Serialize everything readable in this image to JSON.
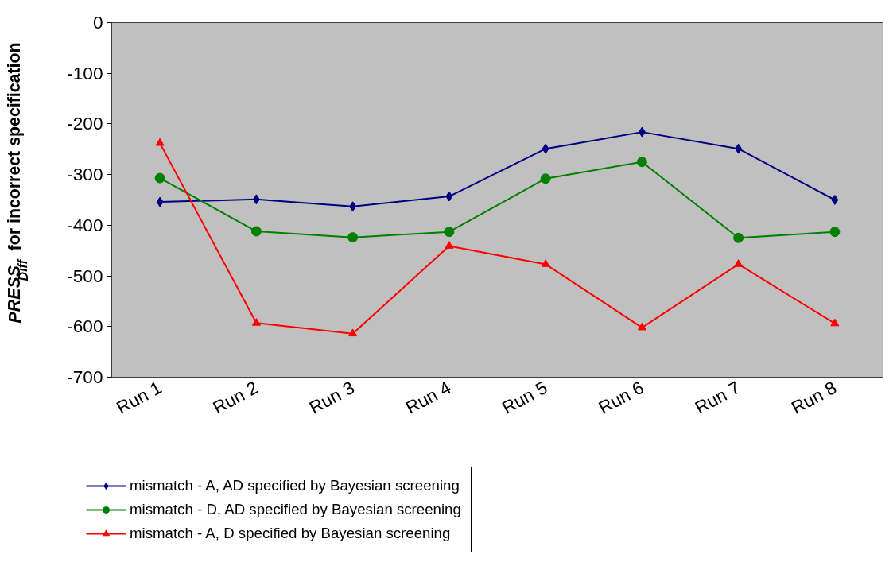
{
  "chart_data": {
    "type": "line",
    "ylabel": "PRESS$_{Diff}$ for incorrect specification",
    "categories": [
      "Run 1",
      "Run 2",
      "Run 3",
      "Run 4",
      "Run 5",
      "Run 6",
      "Run 7",
      "Run 8"
    ],
    "series": [
      {
        "name": "mismatch - A, AD specified by Bayesian screening",
        "color": "#000080",
        "marker": "diamond",
        "values": [
          -354,
          -349,
          -363,
          -343,
          -249,
          -216,
          -249,
          -350
        ]
      },
      {
        "name": "mismatch - D, AD specified by Bayesian screening",
        "color": "#008000",
        "marker": "circle",
        "values": [
          -307,
          -412,
          -424,
          -413,
          -308,
          -275,
          -425,
          -413
        ]
      },
      {
        "name": "mismatch - A, D specified by Bayesian screening",
        "color": "#ff0000",
        "marker": "triangle",
        "values": [
          -238,
          -593,
          -614,
          -441,
          -477,
          -602,
          -477,
          -594
        ]
      }
    ],
    "ylim": [
      -700,
      0
    ],
    "yticks": [
      -700,
      -600,
      -500,
      -400,
      -300,
      -200,
      -100,
      0
    ],
    "legend": "bottom",
    "line_style": "solid"
  }
}
